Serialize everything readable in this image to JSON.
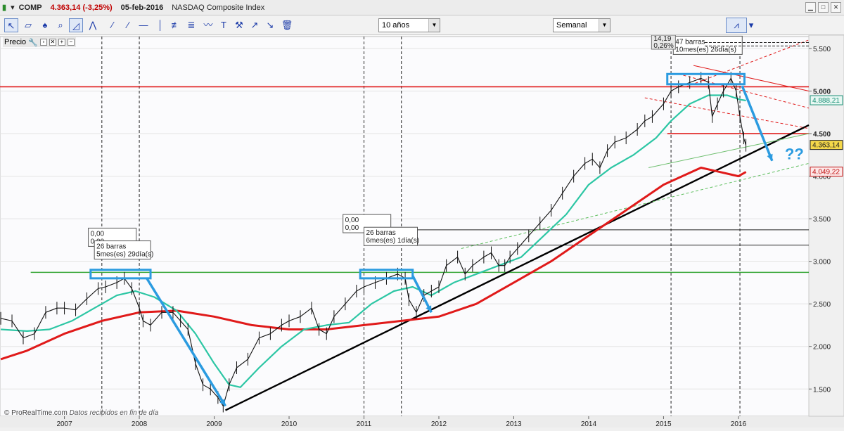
{
  "titlebar": {
    "symbol": "COMP",
    "change": "4.363,14 (-3,25%)",
    "date": "05-feb-2016",
    "name": "NASDAQ Composite Index"
  },
  "toolbar": {
    "period": "10 años",
    "interval": "Semanal"
  },
  "panel": {
    "label": "Precio",
    "watermark_site": "© ProRealTime.com",
    "watermark_text": "Datos recibidos en fin de día"
  },
  "price_labels": {
    "last": "4.363,14",
    "ma_green": "4.888,21",
    "ma_red": "4.049,22",
    "corner_a": "14,19",
    "corner_b": "0,26%"
  },
  "annotations": {
    "box1_a": "0,00",
    "box1_b": "0,00",
    "box1_l1": "26 barras",
    "box1_l2": "5mes(es) 29día(s)",
    "box2_a": "0,00",
    "box2_b": "0,00",
    "box2_l1": "26 barras",
    "box2_l2": "6mes(es) 1día(s)",
    "box3_l1": "47 barras",
    "box3_l2": "10mes(es) 26día(s)",
    "question": "??"
  },
  "colors": {
    "price": "#111111",
    "ma_short": "#2cc6a4",
    "ma_long": "#e01a1a",
    "trend": "#000000",
    "arrow": "#2b9be0",
    "support": "#3aa83a",
    "resistance": "#e01a1a"
  },
  "chart_data": {
    "type": "line",
    "title": "NASDAQ Composite Index",
    "xlabel": "",
    "ylabel": "",
    "x_ticks": [
      "2007",
      "2008",
      "2009",
      "2010",
      "2011",
      "2012",
      "2013",
      "2014",
      "2015",
      "2016"
    ],
    "y_ticks": [
      1500,
      2000,
      2500,
      3000,
      3500,
      4000,
      4500,
      5000,
      5500
    ],
    "y_tick_labels": [
      "1.500",
      "2.000",
      "2.500",
      "3.000",
      "3.500",
      "4.000",
      "4.500",
      "5.000",
      "5.500"
    ],
    "ylim": [
      1180,
      5640
    ],
    "xlim": [
      2006.14,
      2016.94
    ],
    "series": [
      {
        "key": "price",
        "x": [
          2006.15,
          2006.3,
          2006.45,
          2006.6,
          2006.75,
          2006.9,
          2007.0,
          2007.15,
          2007.3,
          2007.45,
          2007.55,
          2007.7,
          2007.8,
          2007.9,
          2008.0,
          2008.05,
          2008.15,
          2008.3,
          2008.45,
          2008.55,
          2008.65,
          2008.75,
          2008.85,
          2008.95,
          2009.05,
          2009.12,
          2009.2,
          2009.3,
          2009.45,
          2009.6,
          2009.75,
          2009.9,
          2010.0,
          2010.15,
          2010.3,
          2010.4,
          2010.5,
          2010.6,
          2010.75,
          2010.9,
          2011.0,
          2011.15,
          2011.3,
          2011.45,
          2011.55,
          2011.6,
          2011.7,
          2011.8,
          2011.9,
          2012.0,
          2012.1,
          2012.25,
          2012.35,
          2012.45,
          2012.6,
          2012.7,
          2012.8,
          2012.88,
          2012.95,
          2013.05,
          2013.2,
          2013.35,
          2013.5,
          2013.65,
          2013.8,
          2013.95,
          2014.05,
          2014.15,
          2014.25,
          2014.35,
          2014.5,
          2014.65,
          2014.75,
          2014.85,
          2015.0,
          2015.1,
          2015.2,
          2015.35,
          2015.5,
          2015.6,
          2015.65,
          2015.72,
          2015.8,
          2015.9,
          2015.97,
          2016.02,
          2016.07,
          2016.1
        ],
        "y": [
          2330,
          2300,
          2100,
          2150,
          2400,
          2450,
          2450,
          2430,
          2560,
          2680,
          2700,
          2750,
          2800,
          2680,
          2450,
          2300,
          2250,
          2400,
          2400,
          2300,
          2200,
          1800,
          1550,
          1500,
          1400,
          1300,
          1550,
          1750,
          1850,
          2100,
          2150,
          2250,
          2300,
          2350,
          2450,
          2200,
          2150,
          2350,
          2500,
          2650,
          2700,
          2750,
          2800,
          2850,
          2800,
          2550,
          2400,
          2600,
          2650,
          2700,
          2950,
          3050,
          2850,
          2950,
          3050,
          3100,
          2950,
          2950,
          3050,
          3150,
          3300,
          3450,
          3600,
          3800,
          4000,
          4150,
          4200,
          4100,
          4300,
          4400,
          4450,
          4550,
          4650,
          4700,
          4850,
          5000,
          5050,
          5100,
          5150,
          5100,
          4700,
          4850,
          5000,
          5150,
          5000,
          4700,
          4450,
          4363
        ]
      },
      {
        "key": "ma_short",
        "x": [
          2006.15,
          2006.5,
          2006.8,
          2007.1,
          2007.4,
          2007.7,
          2007.95,
          2008.2,
          2008.5,
          2008.75,
          2009.0,
          2009.2,
          2009.35,
          2009.6,
          2009.9,
          2010.2,
          2010.5,
          2010.8,
          2011.1,
          2011.4,
          2011.65,
          2011.9,
          2012.2,
          2012.5,
          2012.8,
          2013.1,
          2013.4,
          2013.7,
          2014.0,
          2014.3,
          2014.6,
          2014.9,
          2015.1,
          2015.35,
          2015.6,
          2015.85,
          2016.02,
          2016.1
        ],
        "y": [
          2200,
          2180,
          2200,
          2300,
          2450,
          2600,
          2650,
          2580,
          2420,
          2150,
          1800,
          1550,
          1520,
          1750,
          2000,
          2200,
          2250,
          2280,
          2500,
          2650,
          2700,
          2600,
          2750,
          2850,
          2950,
          3050,
          3300,
          3550,
          3900,
          4100,
          4250,
          4450,
          4650,
          4850,
          4950,
          4950,
          4900,
          4888
        ]
      },
      {
        "key": "ma_long",
        "x": [
          2006.15,
          2006.5,
          2007.0,
          2007.5,
          2008.0,
          2008.5,
          2009.0,
          2009.5,
          2010.0,
          2010.5,
          2011.0,
          2011.5,
          2012.0,
          2012.5,
          2013.0,
          2013.5,
          2014.0,
          2014.5,
          2015.0,
          2015.5,
          2016.0,
          2016.1
        ],
        "y": [
          1850,
          1950,
          2150,
          2300,
          2400,
          2420,
          2350,
          2250,
          2200,
          2200,
          2250,
          2300,
          2350,
          2500,
          2750,
          3000,
          3300,
          3600,
          3900,
          4100,
          4000,
          4049
        ]
      }
    ],
    "trend_lines": [
      {
        "key": "support_main",
        "x": [
          2009.15,
          2016.94
        ],
        "y": [
          1250,
          4600
        ]
      },
      {
        "key": "support_upper",
        "x": [
          2014.8,
          2016.94
        ],
        "y": [
          4100,
          4500
        ]
      },
      {
        "key": "green_dashed",
        "x": [
          2012.3,
          2016.94
        ],
        "y": [
          3150,
          4150
        ]
      },
      {
        "key": "red_resist_a",
        "x": [
          2015.4,
          2016.94
        ],
        "y": [
          5300,
          5000
        ]
      },
      {
        "key": "red_resist_b",
        "x": [
          2014.75,
          2016.94
        ],
        "y": [
          4920,
          4560
        ]
      },
      {
        "key": "red_resist_c",
        "x": [
          2015.3,
          2016.94
        ],
        "y": [
          5050,
          5600
        ]
      },
      {
        "key": "red_resist_d",
        "x": [
          2015.2,
          2016.94
        ],
        "y": [
          5200,
          4800
        ]
      }
    ],
    "horizontal_levels": [
      {
        "key": "resist_5050",
        "y": 5050,
        "color": "red",
        "x_from": 2006.14
      },
      {
        "key": "level_4500",
        "y": 4500,
        "color": "red",
        "x_from": 2015.05
      },
      {
        "key": "support_2870",
        "y": 2870,
        "color": "green",
        "x_from": 2006.55
      },
      {
        "key": "level_3370",
        "y": 3370,
        "color": "black",
        "x_from": 2011.0
      },
      {
        "key": "level_3190",
        "y": 3190,
        "color": "black",
        "x_from": 2011.0
      }
    ],
    "vertical_markers": [
      2007.5,
      2008.0,
      2011.0,
      2011.5,
      2015.1,
      2016.02
    ],
    "grid": true,
    "legend": "none"
  }
}
